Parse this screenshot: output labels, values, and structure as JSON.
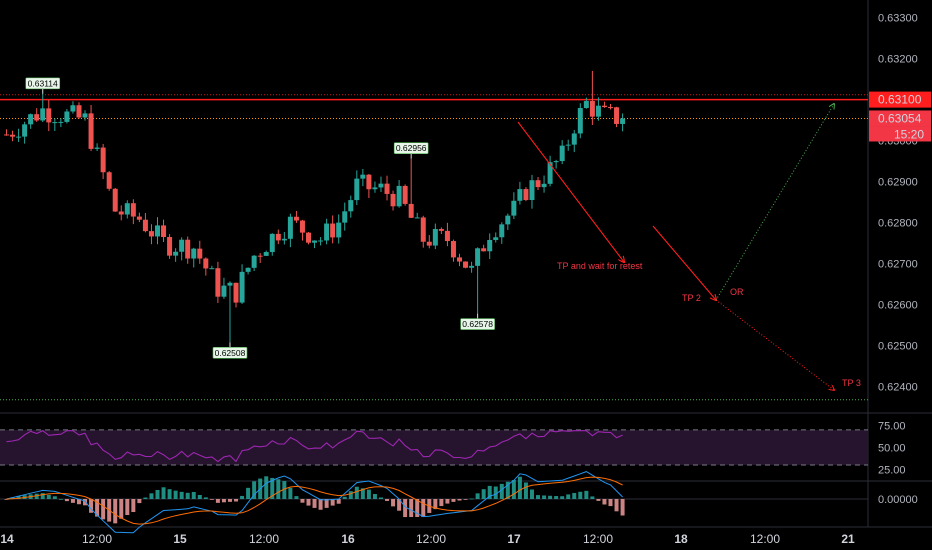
{
  "chart_data": {
    "type": "candlestick",
    "price_axis": {
      "ticks": [
        "0.63300",
        "0.63200",
        "0.63000",
        "0.62900",
        "0.62800",
        "0.62700",
        "0.62600",
        "0.62500",
        "0.62400"
      ],
      "tick_values": [
        0.633,
        0.632,
        0.63,
        0.629,
        0.628,
        0.627,
        0.626,
        0.625,
        0.624
      ],
      "range": [
        0.62338,
        0.63343
      ]
    },
    "time_axis": {
      "labels": [
        "14",
        "12:00",
        "15",
        "12:00",
        "16",
        "12:00",
        "17",
        "12:00",
        "18",
        "12:00",
        "21"
      ]
    },
    "price_labels": {
      "resistance": "0.63100",
      "current": "0.63054",
      "countdown": "15:20"
    },
    "levels": {
      "resistance": 0.631,
      "upper_dotted": 0.63112,
      "current": 0.63054,
      "support": 0.62368
    },
    "markers": {
      "high1": {
        "label": "0.63114",
        "value": 0.63114,
        "bar": 6
      },
      "high2": {
        "label": "0.62956",
        "value": 0.62956,
        "bar": 67
      },
      "low1": {
        "label": "0.62508",
        "value": 0.62508,
        "bar": 37
      },
      "low2": {
        "label": "0.62578",
        "value": 0.62578,
        "bar": 78
      }
    },
    "annotations": {
      "tp1": "TP and wait for retest",
      "tp2": "TP 2",
      "or": "OR",
      "tp3": "TP 3"
    },
    "rsi": {
      "ticks": [
        "75.00",
        "50.00",
        "25.00"
      ],
      "tick_values": [
        75,
        50,
        25
      ],
      "upper": 70,
      "lower": 30
    },
    "macd": {
      "ticks": [
        "0.00000"
      ],
      "tick_values": [
        0
      ]
    },
    "colors": {
      "up": "#26a69a",
      "down": "#ef5350",
      "rsi": "#9c27b0",
      "level": "#ff1e1e",
      "support": "#4caf50",
      "macd": "#2196f3",
      "signal": "#ff6d00"
    }
  }
}
